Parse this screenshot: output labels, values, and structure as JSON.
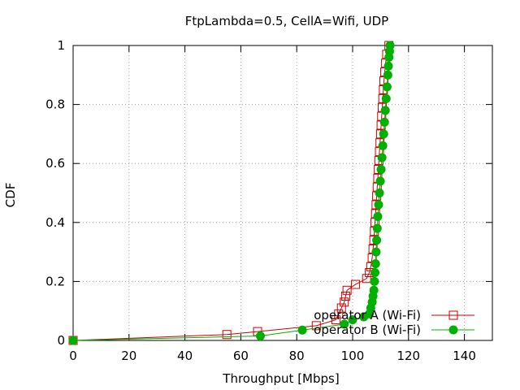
{
  "chart_data": {
    "type": "line",
    "title": "FtpLambda=0.5, CellA=Wifi, UDP",
    "xlabel": "Throughput [Mbps]",
    "ylabel": "CDF",
    "xlim": [
      0,
      150
    ],
    "ylim": [
      0,
      1
    ],
    "x_ticks": [
      0,
      20,
      40,
      60,
      80,
      100,
      120,
      140
    ],
    "y_ticks": [
      0,
      0.2,
      0.4,
      0.6,
      0.8,
      1
    ],
    "grid": true,
    "legend_position": "bottom-right",
    "series": [
      {
        "name": "operator A (Wi-Fi)",
        "color": "#cc0000",
        "marker": "open-square",
        "points": [
          [
            0,
            0
          ],
          [
            55,
            0.02
          ],
          [
            66,
            0.03
          ],
          [
            87,
            0.05
          ],
          [
            94,
            0.07
          ],
          [
            95,
            0.09
          ],
          [
            96,
            0.11
          ],
          [
            97,
            0.13
          ],
          [
            97.5,
            0.15
          ],
          [
            98,
            0.17
          ],
          [
            101,
            0.19
          ],
          [
            105,
            0.21
          ],
          [
            106,
            0.23
          ],
          [
            106.5,
            0.25
          ],
          [
            107,
            0.28
          ],
          [
            107.3,
            0.31
          ],
          [
            107.6,
            0.34
          ],
          [
            107.8,
            0.37
          ],
          [
            108,
            0.4
          ],
          [
            108.2,
            0.43
          ],
          [
            108.4,
            0.46
          ],
          [
            108.6,
            0.49
          ],
          [
            108.8,
            0.52
          ],
          [
            109,
            0.55
          ],
          [
            109.2,
            0.58
          ],
          [
            109.4,
            0.61
          ],
          [
            109.6,
            0.64
          ],
          [
            109.8,
            0.67
          ],
          [
            110,
            0.7
          ],
          [
            110.2,
            0.73
          ],
          [
            110.4,
            0.76
          ],
          [
            110.6,
            0.79
          ],
          [
            110.8,
            0.82
          ],
          [
            111,
            0.85
          ],
          [
            111.2,
            0.88
          ],
          [
            111.5,
            0.91
          ],
          [
            111.8,
            0.94
          ],
          [
            112.2,
            0.97
          ],
          [
            113,
            1.0
          ]
        ]
      },
      {
        "name": "operator B (Wi-Fi)",
        "color": "#00b000",
        "marker": "filled-circle",
        "points": [
          [
            0,
            0
          ],
          [
            67,
            0.015
          ],
          [
            82,
            0.035
          ],
          [
            97,
            0.055
          ],
          [
            100,
            0.07
          ],
          [
            104,
            0.08
          ],
          [
            106,
            0.09
          ],
          [
            106.5,
            0.11
          ],
          [
            107,
            0.13
          ],
          [
            107.3,
            0.15
          ],
          [
            107.6,
            0.17
          ],
          [
            107.8,
            0.2
          ],
          [
            108,
            0.23
          ],
          [
            108.2,
            0.26
          ],
          [
            108.4,
            0.3
          ],
          [
            108.6,
            0.34
          ],
          [
            108.8,
            0.38
          ],
          [
            109,
            0.42
          ],
          [
            109.3,
            0.46
          ],
          [
            109.6,
            0.5
          ],
          [
            109.9,
            0.54
          ],
          [
            110.2,
            0.58
          ],
          [
            110.5,
            0.62
          ],
          [
            110.8,
            0.66
          ],
          [
            111.1,
            0.7
          ],
          [
            111.4,
            0.74
          ],
          [
            111.7,
            0.78
          ],
          [
            112,
            0.82
          ],
          [
            112.3,
            0.86
          ],
          [
            112.6,
            0.9
          ],
          [
            112.8,
            0.93
          ],
          [
            113,
            0.96
          ],
          [
            113.2,
            0.98
          ],
          [
            113.4,
            1.0
          ]
        ]
      }
    ]
  }
}
